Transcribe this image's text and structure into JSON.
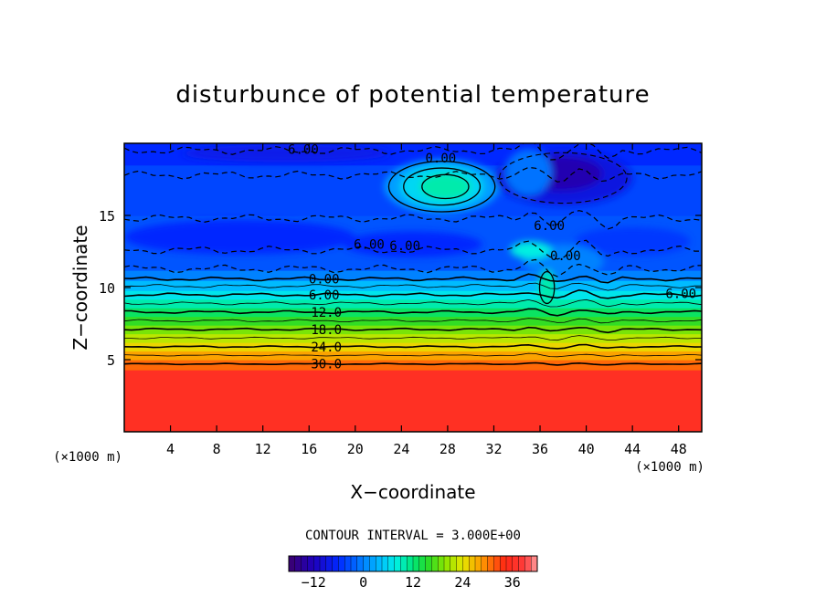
{
  "chart_data": {
    "type": "heatmap",
    "title": "disturbunce of potential temperature",
    "xlabel": "X−coordinate",
    "ylabel": "Z−coordinate",
    "x_unit": "(×1000 m)",
    "y_unit": "(×1000 m)",
    "xlim": [
      0,
      50
    ],
    "ylim": [
      0,
      20
    ],
    "x_ticks": [
      4,
      8,
      12,
      16,
      20,
      24,
      28,
      32,
      36,
      40,
      44,
      48
    ],
    "y_ticks": [
      5,
      10,
      15
    ],
    "contour_interval_text": "CONTOUR INTERVAL = 3.000E+00",
    "contour_interval": 3.0,
    "colorbar": {
      "min": -18,
      "max": 42,
      "ticks": [
        -12,
        0,
        12,
        24,
        36
      ]
    },
    "bands": [
      {
        "z_bottom": 0.0,
        "z_top": 4.3,
        "value": 36
      },
      {
        "z_bottom": 4.3,
        "z_top": 5.0,
        "value": 31
      },
      {
        "z_bottom": 5.0,
        "z_top": 5.6,
        "value": 28
      },
      {
        "z_bottom": 5.6,
        "z_top": 6.2,
        "value": 25
      },
      {
        "z_bottom": 6.2,
        "z_top": 6.8,
        "value": 22
      },
      {
        "z_bottom": 6.8,
        "z_top": 7.4,
        "value": 19
      },
      {
        "z_bottom": 7.4,
        "z_top": 8.0,
        "value": 16
      },
      {
        "z_bottom": 8.0,
        "z_top": 8.6,
        "value": 13
      },
      {
        "z_bottom": 8.6,
        "z_top": 9.2,
        "value": 10
      },
      {
        "z_bottom": 9.2,
        "z_top": 9.8,
        "value": 7
      },
      {
        "z_bottom": 9.8,
        "z_top": 10.5,
        "value": 4
      },
      {
        "z_bottom": 10.5,
        "z_top": 11.2,
        "value": 0
      },
      {
        "z_bottom": 11.2,
        "z_top": 15.0,
        "value": -3
      },
      {
        "z_bottom": 15.0,
        "z_top": 18.5,
        "value": -4
      },
      {
        "z_bottom": 18.5,
        "z_top": 20.0,
        "value": -6
      }
    ],
    "blobs": [
      {
        "cx": 27.5,
        "cz": 17.0,
        "rx": 5.0,
        "rz": 1.9,
        "value": 2
      },
      {
        "cx": 27.5,
        "cz": 17.0,
        "rx": 3.6,
        "rz": 1.4,
        "value": 6
      },
      {
        "cx": 27.8,
        "cz": 17.0,
        "rx": 2.2,
        "rz": 0.9,
        "value": 10
      },
      {
        "cx": 38.0,
        "cz": 17.6,
        "rx": 6.0,
        "rz": 1.9,
        "value": -9
      },
      {
        "cx": 37.8,
        "cz": 17.9,
        "rx": 3.6,
        "rz": 1.2,
        "value": -13
      },
      {
        "cx": 10.0,
        "cz": 13.5,
        "rx": 10.0,
        "rz": 1.2,
        "value": -6
      },
      {
        "cx": 25.0,
        "cz": 13.0,
        "rx": 6.0,
        "rz": 0.9,
        "value": -6
      },
      {
        "cx": 44.0,
        "cz": 13.2,
        "rx": 5.0,
        "rz": 1.0,
        "value": -5
      },
      {
        "cx": 38.0,
        "cz": 11.8,
        "rx": 3.5,
        "rz": 1.2,
        "value": 0
      },
      {
        "cx": 35.2,
        "cz": 12.6,
        "rx": 1.8,
        "rz": 0.6,
        "value": 8
      },
      {
        "cx": 36.6,
        "cz": 10.0,
        "rx": 0.7,
        "rz": 1.2,
        "value": 10
      },
      {
        "cx": 35.0,
        "cz": 18.0,
        "rx": 2.0,
        "rz": 1.6,
        "value": -1
      },
      {
        "cx": 14.0,
        "cz": 19.3,
        "rx": 9.0,
        "rz": 0.6,
        "value": -8
      }
    ],
    "contours": [
      {
        "value": 30,
        "z": 4.7
      },
      {
        "value": 27,
        "z": 5.3
      },
      {
        "value": 24,
        "z": 5.9
      },
      {
        "value": 21,
        "z": 6.5
      },
      {
        "value": 18,
        "z": 7.1
      },
      {
        "value": 15,
        "z": 7.7
      },
      {
        "value": 12,
        "z": 8.3
      },
      {
        "value": 9,
        "z": 8.9
      },
      {
        "value": 6,
        "z": 9.5
      },
      {
        "value": 3,
        "z": 10.1
      },
      {
        "value": 0,
        "z": 10.6
      }
    ],
    "dashed_contours": [
      {
        "value": -3,
        "z": 11.3
      },
      {
        "value": -6,
        "z": 12.6
      },
      {
        "value": -3,
        "z": 14.8
      },
      {
        "value": -6,
        "z": 17.8
      },
      {
        "value": -6,
        "z": 19.5
      }
    ],
    "contour_labels": [
      {
        "text": "30.0",
        "x": 17.5,
        "z": 4.7
      },
      {
        "text": "24.0",
        "x": 17.5,
        "z": 5.9
      },
      {
        "text": "18.0",
        "x": 17.5,
        "z": 7.1
      },
      {
        "text": "12.0",
        "x": 17.5,
        "z": 8.3
      },
      {
        "text": "6.00",
        "x": 17.3,
        "z": 9.5
      },
      {
        "text": "0.00",
        "x": 17.3,
        "z": 10.6
      },
      {
        "text": "6.00",
        "x": 48.2,
        "z": 9.6
      },
      {
        "text": "6.00",
        "x": 21.2,
        "z": 13.0
      },
      {
        "text": "6.00",
        "x": 24.3,
        "z": 12.9
      },
      {
        "text": "6.00",
        "x": 15.5,
        "z": 19.6
      },
      {
        "text": "0.00",
        "x": 27.4,
        "z": 19.0
      },
      {
        "text": "6.00",
        "x": 36.8,
        "z": 14.3
      },
      {
        "text": "0.00",
        "x": 38.2,
        "z": 12.2
      }
    ]
  }
}
